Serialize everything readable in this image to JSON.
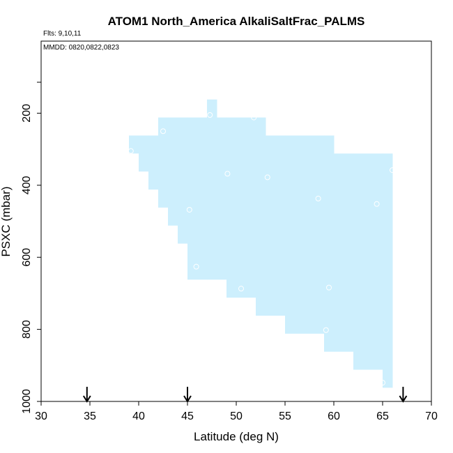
{
  "chart_data": {
    "type": "heatmap",
    "title": "ATOM1 North_America AlkaliSaltFrac_PALMS",
    "annotations": {
      "flights": "Flts: 9,10,11",
      "dates": "MMDD: 0820,0822,0823"
    },
    "xlabel": "Latitude (deg N)",
    "ylabel": "PSXC (mbar)",
    "xlim": [
      30,
      70
    ],
    "ylim": [
      1000,
      0
    ],
    "y_reversed": true,
    "x_ticks": [
      30,
      35,
      40,
      45,
      50,
      55,
      60,
      65,
      70
    ],
    "y_ticks": [
      200,
      400,
      600,
      800,
      1000
    ],
    "grid": false,
    "fill_color": "#cdeffd",
    "point_color": "#ffffff",
    "columns": [
      {
        "lat": [
          39,
          40
        ],
        "p": [
          262,
          312
        ]
      },
      {
        "lat": [
          40,
          41
        ],
        "p": [
          262,
          362
        ]
      },
      {
        "lat": [
          41,
          42
        ],
        "p": [
          262,
          412
        ]
      },
      {
        "lat": [
          42,
          43
        ],
        "p": [
          212,
          462
        ]
      },
      {
        "lat": [
          43,
          44
        ],
        "p": [
          212,
          512
        ]
      },
      {
        "lat": [
          44,
          45
        ],
        "p": [
          212,
          562
        ]
      },
      {
        "lat": [
          45,
          47
        ],
        "p": [
          212,
          662
        ]
      },
      {
        "lat": [
          47,
          48
        ],
        "p": [
          162,
          662
        ]
      },
      {
        "lat": [
          48,
          49
        ],
        "p": [
          212,
          662
        ]
      },
      {
        "lat": [
          49,
          52
        ],
        "p": [
          212,
          712
        ]
      },
      {
        "lat": [
          52,
          53
        ],
        "p": [
          212,
          762
        ]
      },
      {
        "lat": [
          53,
          55
        ],
        "p": [
          262,
          762
        ]
      },
      {
        "lat": [
          55,
          59
        ],
        "p": [
          262,
          812
        ]
      },
      {
        "lat": [
          59,
          60
        ],
        "p": [
          262,
          862
        ]
      },
      {
        "lat": [
          60,
          62
        ],
        "p": [
          312,
          862
        ]
      },
      {
        "lat": [
          62,
          65
        ],
        "p": [
          312,
          912
        ]
      },
      {
        "lat": [
          65,
          66
        ],
        "p": [
          312,
          962
        ]
      }
    ],
    "points": [
      {
        "lat": 39.2,
        "p": 305
      },
      {
        "lat": 42.5,
        "p": 250
      },
      {
        "lat": 47.3,
        "p": 205
      },
      {
        "lat": 51.8,
        "p": 212
      },
      {
        "lat": 49.1,
        "p": 368
      },
      {
        "lat": 53.2,
        "p": 378
      },
      {
        "lat": 45.2,
        "p": 468
      },
      {
        "lat": 58.4,
        "p": 437
      },
      {
        "lat": 64.4,
        "p": 452
      },
      {
        "lat": 66.0,
        "p": 358
      },
      {
        "lat": 45.9,
        "p": 626
      },
      {
        "lat": 50.5,
        "p": 687
      },
      {
        "lat": 59.5,
        "p": 684
      },
      {
        "lat": 59.2,
        "p": 802
      },
      {
        "lat": 65.0,
        "p": 948
      }
    ],
    "arrows_at_lat": [
      34.7,
      45.0,
      67.1
    ]
  }
}
